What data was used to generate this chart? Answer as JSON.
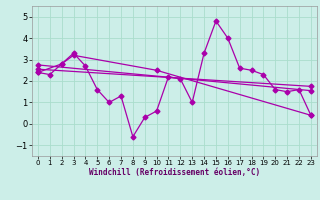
{
  "background_color": "#cceee8",
  "grid_color": "#aaddcc",
  "line_color": "#aa00aa",
  "xlim": [
    -0.5,
    23.5
  ],
  "ylim": [
    -1.5,
    5.5
  ],
  "yticks": [
    -1,
    0,
    1,
    2,
    3,
    4,
    5
  ],
  "xticks": [
    0,
    1,
    2,
    3,
    4,
    5,
    6,
    7,
    8,
    9,
    10,
    11,
    12,
    13,
    14,
    15,
    16,
    17,
    18,
    19,
    20,
    21,
    22,
    23
  ],
  "xlabel": "Windchill (Refroidissement éolien,°C)",
  "series1_x": [
    0,
    1,
    2,
    3,
    4,
    5,
    6,
    7,
    8,
    9,
    10,
    11,
    12,
    13,
    14,
    15,
    16,
    17,
    18,
    19,
    20,
    21,
    22,
    23
  ],
  "series1_y": [
    2.4,
    2.3,
    2.8,
    3.3,
    2.7,
    1.6,
    1.0,
    1.3,
    -0.6,
    0.3,
    0.6,
    2.2,
    2.1,
    1.0,
    3.3,
    4.8,
    4.0,
    2.6,
    2.5,
    2.3,
    1.6,
    1.5,
    1.6,
    0.4
  ],
  "series2_x": [
    0,
    2,
    3,
    10,
    23
  ],
  "series2_y": [
    2.4,
    2.8,
    3.2,
    2.5,
    0.4
  ],
  "series3_x": [
    0,
    23
  ],
  "series3_y": [
    2.75,
    1.55
  ],
  "series4_x": [
    0,
    23
  ],
  "series4_y": [
    2.55,
    1.75
  ]
}
